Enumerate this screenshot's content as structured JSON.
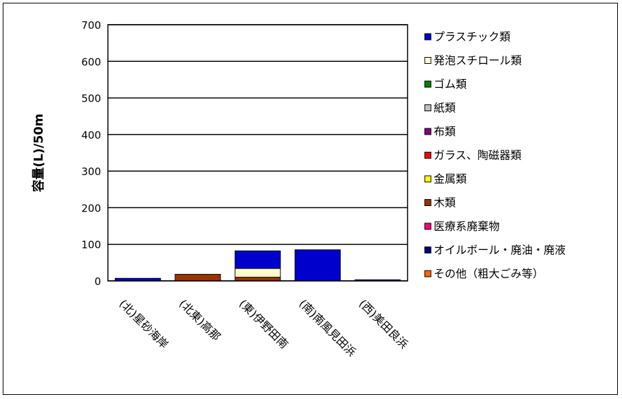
{
  "chart_data": {
    "type": "bar",
    "stacked": true,
    "ylabel": "容量(L)/50m",
    "ylim": [
      0,
      700
    ],
    "yticks": [
      0,
      100,
      200,
      300,
      400,
      500,
      600,
      700
    ],
    "grid": true,
    "legend_position": "right",
    "categories": [
      "(北)星砂海岸",
      "(北東)高那",
      "(東)伊野田南",
      "(南)南風見田浜",
      "(西)美田良浜"
    ],
    "series": [
      {
        "name": "その他（粗大ごみ等）",
        "color": "#ff6600",
        "values": [
          0,
          0,
          0,
          0,
          0
        ]
      },
      {
        "name": "オイルボール・廃油・廃液",
        "color": "#000080",
        "values": [
          0,
          0,
          0,
          0,
          0
        ]
      },
      {
        "name": "医療系廃棄物",
        "color": "#ff0080",
        "values": [
          0,
          0,
          0,
          0,
          0
        ]
      },
      {
        "name": "木類",
        "color": "#993300",
        "values": [
          0,
          18,
          10,
          0,
          0
        ]
      },
      {
        "name": "金属類",
        "color": "#ffff00",
        "values": [
          0,
          0,
          0,
          0,
          0
        ]
      },
      {
        "name": "ガラス、陶磁器類",
        "color": "#ff0000",
        "values": [
          0,
          0,
          0,
          0,
          0
        ]
      },
      {
        "name": "布類",
        "color": "#800080",
        "values": [
          0,
          0,
          0,
          0,
          0
        ]
      },
      {
        "name": "紙類",
        "color": "#c0c0c0",
        "values": [
          0,
          0,
          0,
          0,
          0
        ]
      },
      {
        "name": "ゴム類",
        "color": "#008000",
        "values": [
          0,
          0,
          0,
          0,
          0
        ]
      },
      {
        "name": "発泡スチロール類",
        "color": "#ffffcc",
        "values": [
          0,
          0,
          24,
          0,
          0
        ]
      },
      {
        "name": "プラスチック類",
        "color": "#0000cc",
        "values": [
          7,
          0,
          48,
          85,
          3
        ]
      }
    ],
    "legend_order": [
      "プラスチック類",
      "発泡スチロール類",
      "ゴム類",
      "紙類",
      "布類",
      "ガラス、陶磁器類",
      "金属類",
      "木類",
      "医療系廃棄物",
      "オイルボール・廃油・廃液",
      "その他（粗大ごみ等）"
    ]
  }
}
